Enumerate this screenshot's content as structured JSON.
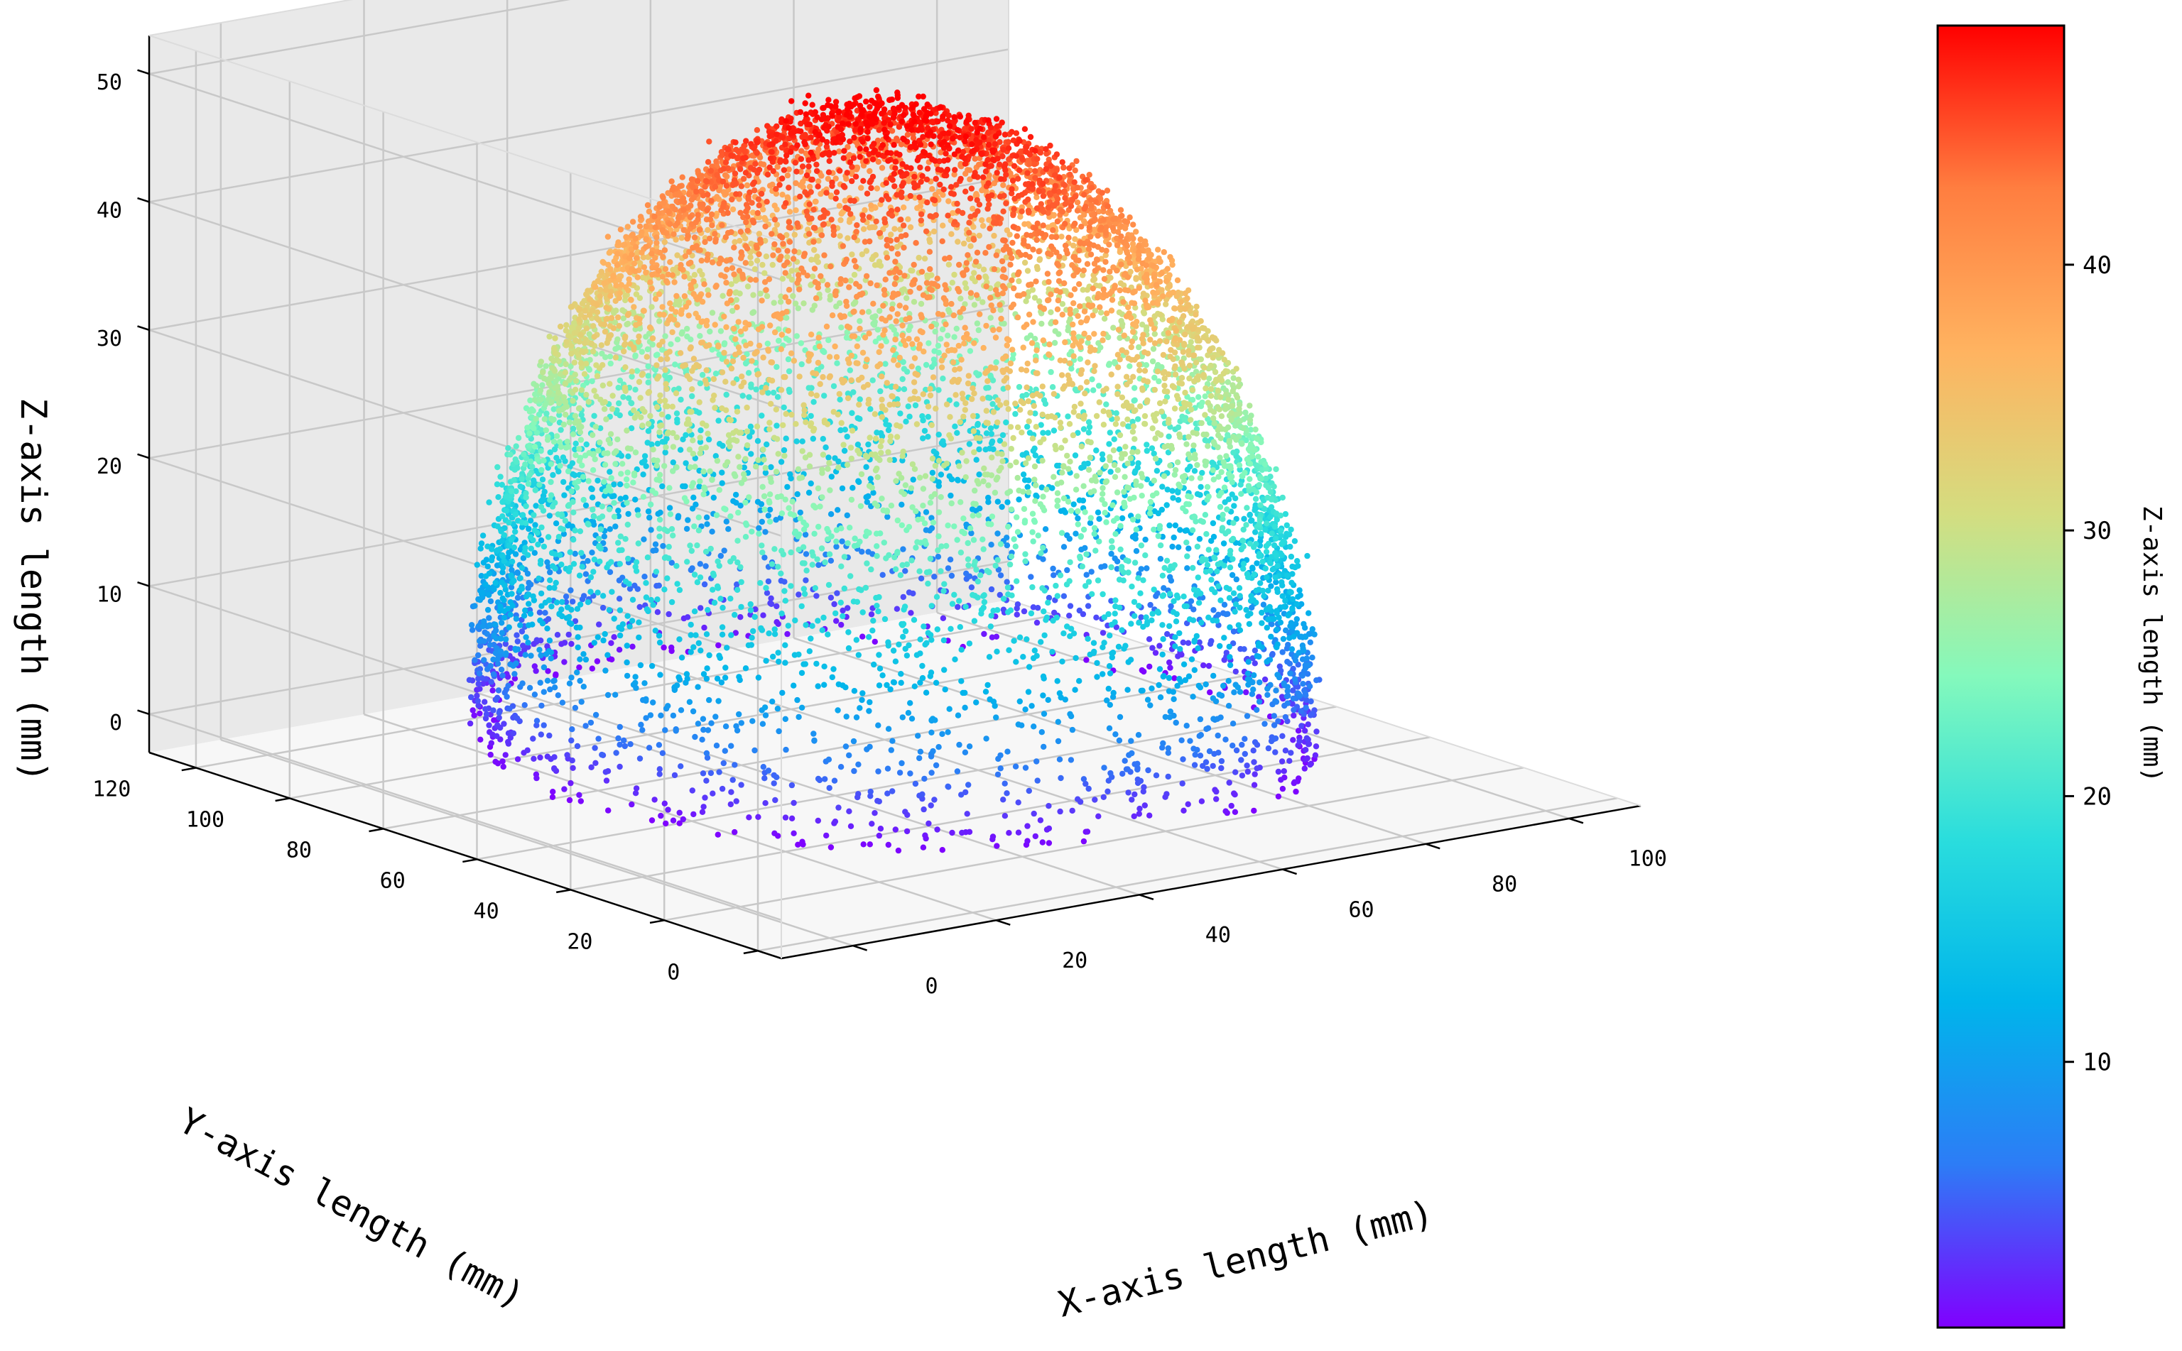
{
  "chart_data": {
    "type": "scatter",
    "subtype": "3d-scatter",
    "title": "",
    "xlabel": "X-axis length (mm)",
    "ylabel": "Y-axis length (mm)",
    "zlabel": "Z-axis length (mm)",
    "x_ticks": [
      "0",
      "20",
      "40",
      "60",
      "80",
      "100"
    ],
    "y_ticks": [
      "0",
      "20",
      "40",
      "60",
      "80",
      "100",
      "120"
    ],
    "z_ticks": [
      "0",
      "10",
      "20",
      "30",
      "40",
      "50"
    ],
    "xlim": [
      -10,
      110
    ],
    "ylim": [
      -5,
      130
    ],
    "zlim": [
      -3,
      53
    ],
    "grid": true,
    "colormap": "rainbow",
    "colormap_stops": [
      "#8000ff",
      "#2d7cf6",
      "#00b5eb",
      "#2adddd",
      "#84f9bc",
      "#d4dd80",
      "#ffb360",
      "#ff7e40",
      "#ff0000"
    ],
    "point_description": "dome-shaped point cloud; points colored by z value",
    "dome": {
      "center_x": 48,
      "center_y": 60,
      "radius_x": 44,
      "radius_y": 58,
      "peak_z": 49
    },
    "colorbar": {
      "label": "Z-axis length (mm)",
      "range": [
        0,
        49
      ],
      "ticks": [
        "10",
        "20",
        "30",
        "40"
      ]
    }
  }
}
